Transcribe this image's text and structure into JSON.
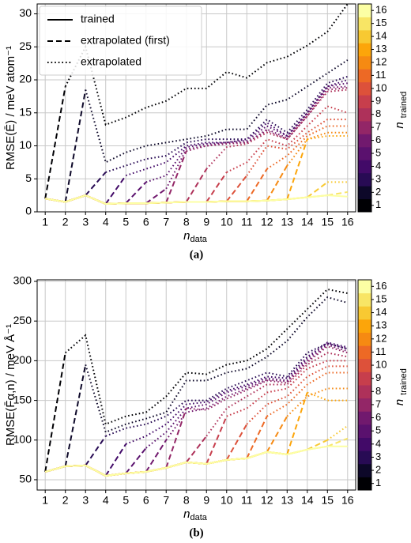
{
  "chart_data": [
    {
      "type": "line",
      "label": "(a)",
      "y_label": "RMSE(Ē) / meV atom⁻¹",
      "x_label": "n",
      "x_label_sub": "data",
      "x": [
        1,
        2,
        3,
        4,
        5,
        6,
        7,
        8,
        9,
        10,
        11,
        12,
        13,
        14,
        15,
        16
      ],
      "xlim": [
        0.6,
        16.4
      ],
      "xticks": [
        1,
        2,
        3,
        4,
        5,
        6,
        7,
        8,
        9,
        10,
        11,
        12,
        13,
        14,
        15,
        16
      ],
      "ylim": [
        0,
        31.5
      ],
      "yticks": [
        0,
        5,
        10,
        15,
        20,
        25,
        30
      ],
      "grid": true,
      "legend": {
        "position": "upper left",
        "entries": [
          {
            "label": "trained",
            "dash": "solid"
          },
          {
            "label": "extrapolated (first)",
            "dash": "dashed"
          },
          {
            "label": "extrapolated",
            "dash": "dotted"
          }
        ]
      },
      "colorbar": {
        "label": "n",
        "label_sub": "trained",
        "lim": [
          0.5,
          16.5
        ],
        "ticks": [
          1,
          2,
          3,
          4,
          5,
          6,
          7,
          8,
          9,
          10,
          11,
          12,
          13,
          14,
          15,
          16
        ]
      },
      "series": [
        {
          "n_trained": 1,
          "color": "#000004",
          "values": [
            2.0,
            19,
            25,
            13.2,
            14.3,
            15.8,
            16.8,
            18.7,
            18.7,
            21.2,
            20.3,
            22.6,
            23.5,
            25.2,
            27.3,
            31.5
          ]
        },
        {
          "n_trained": 2,
          "color": "#0d0829",
          "values": [
            2.0,
            1.5,
            18.5,
            7.5,
            9,
            10,
            10.5,
            11,
            11.5,
            12.5,
            12.5,
            16.2,
            17,
            19,
            21,
            23
          ]
        },
        {
          "n_trained": 3,
          "color": "#280b54",
          "values": [
            2.0,
            1.5,
            2.5,
            6,
            7,
            8,
            8.5,
            10.5,
            11,
            11,
            11,
            14,
            12,
            15.5,
            19.5,
            20.5
          ]
        },
        {
          "n_trained": 4,
          "color": "#420a68",
          "values": [
            2.0,
            1.5,
            2.5,
            1.2,
            5.5,
            6.5,
            7.5,
            10,
            10.5,
            10.5,
            11,
            13.5,
            11.5,
            15,
            19,
            20
          ]
        },
        {
          "n_trained": 5,
          "color": "#5a116e",
          "values": [
            2.0,
            1.5,
            2.5,
            1.2,
            1.3,
            4.5,
            5.5,
            9.8,
            10.3,
            10.5,
            10.8,
            13,
            11.5,
            15,
            19,
            19.5
          ]
        },
        {
          "n_trained": 6,
          "color": "#71196e",
          "values": [
            2.0,
            1.5,
            2.5,
            1.2,
            1.3,
            1.3,
            3.5,
            9.5,
            10,
            10.5,
            10.5,
            12.5,
            11.2,
            14.8,
            18.8,
            19
          ]
        },
        {
          "n_trained": 7,
          "color": "#932667",
          "values": [
            2.0,
            1.5,
            2.5,
            1.2,
            1.3,
            1.3,
            1.4,
            9.2,
            10,
            10.3,
            10.5,
            12.3,
            11,
            14.5,
            18.5,
            18.8
          ]
        },
        {
          "n_trained": 8,
          "color": "#ae315a",
          "values": [
            2.0,
            1.5,
            2.5,
            1.2,
            1.3,
            1.3,
            1.4,
            1.5,
            6.5,
            9.8,
            10.3,
            12,
            11,
            14.5,
            18.2,
            18.5
          ]
        },
        {
          "n_trained": 9,
          "color": "#c73e4c",
          "values": [
            2.0,
            1.5,
            2.5,
            1.2,
            1.3,
            1.3,
            1.4,
            1.5,
            1.5,
            6,
            7.5,
            11,
            10,
            13,
            16,
            15
          ]
        },
        {
          "n_trained": 10,
          "color": "#dd513a",
          "values": [
            2.0,
            1.5,
            2.5,
            1.2,
            1.3,
            1.3,
            1.4,
            1.5,
            1.5,
            1.6,
            5.5,
            10,
            9.5,
            12,
            14,
            14
          ]
        },
        {
          "n_trained": 11,
          "color": "#ed6925",
          "values": [
            2.0,
            1.5,
            2.5,
            1.2,
            1.3,
            1.3,
            1.4,
            1.5,
            1.5,
            1.6,
            1.6,
            6.5,
            8.5,
            11.5,
            13,
            13
          ]
        },
        {
          "n_trained": 12,
          "color": "#f68a12",
          "values": [
            2.0,
            1.5,
            2.5,
            1.2,
            1.3,
            1.3,
            1.4,
            1.5,
            1.5,
            1.6,
            1.6,
            1.7,
            7,
            11,
            12,
            12
          ]
        },
        {
          "n_trained": 13,
          "color": "#fca50a",
          "values": [
            2.0,
            1.5,
            2.5,
            1.2,
            1.3,
            1.3,
            1.4,
            1.5,
            1.5,
            1.6,
            1.6,
            1.7,
            1.9,
            11,
            11.5,
            11.5
          ]
        },
        {
          "n_trained": 14,
          "color": "#f8c932",
          "values": [
            2.0,
            1.5,
            2.5,
            1.2,
            1.3,
            1.3,
            1.4,
            1.5,
            1.5,
            1.6,
            1.6,
            1.7,
            1.9,
            2.2,
            4.5,
            4.5
          ]
        },
        {
          "n_trained": 15,
          "color": "#f8e565",
          "values": [
            2.0,
            1.5,
            2.5,
            1.2,
            1.3,
            1.3,
            1.4,
            1.5,
            1.5,
            1.6,
            1.6,
            1.7,
            1.9,
            2.2,
            2.5,
            3
          ]
        },
        {
          "n_trained": 16,
          "color": "#fcffa4",
          "values": [
            2.0,
            1.5,
            2.5,
            1.2,
            1.3,
            1.3,
            1.4,
            1.5,
            1.5,
            1.6,
            1.6,
            1.7,
            1.9,
            2.2,
            2.5,
            2.3
          ]
        }
      ]
    },
    {
      "type": "line",
      "label": "(b)",
      "y_label": "RMSE(F̄α,n) / meV Å⁻¹",
      "x_label": "n",
      "x_label_sub": "data",
      "x": [
        1,
        2,
        3,
        4,
        5,
        6,
        7,
        8,
        9,
        10,
        11,
        12,
        13,
        14,
        15,
        16
      ],
      "xlim": [
        0.6,
        16.4
      ],
      "xticks": [
        1,
        2,
        3,
        4,
        5,
        6,
        7,
        8,
        9,
        10,
        11,
        12,
        13,
        14,
        15,
        16
      ],
      "ylim": [
        37,
        302
      ],
      "yticks": [
        50,
        100,
        150,
        200,
        250,
        300
      ],
      "grid": true,
      "colorbar": {
        "label": "n",
        "label_sub": "trained",
        "lim": [
          0.5,
          16.5
        ],
        "ticks": [
          1,
          2,
          3,
          4,
          5,
          6,
          7,
          8,
          9,
          10,
          11,
          12,
          13,
          14,
          15,
          16
        ]
      },
      "series": [
        {
          "n_trained": 1,
          "color": "#000004",
          "values": [
            60,
            210,
            232,
            120,
            130,
            135,
            155,
            185,
            183,
            195,
            200,
            215,
            240,
            265,
            290,
            285
          ]
        },
        {
          "n_trained": 2,
          "color": "#0d0829",
          "values": [
            60,
            67,
            195,
            110,
            120,
            127,
            135,
            175,
            175,
            185,
            190,
            205,
            225,
            255,
            280,
            273
          ]
        },
        {
          "n_trained": 3,
          "color": "#280b54",
          "values": [
            60,
            67,
            68,
            105,
            115,
            120,
            130,
            150,
            150,
            165,
            175,
            185,
            180,
            210,
            222,
            215
          ]
        },
        {
          "n_trained": 4,
          "color": "#420a68",
          "values": [
            60,
            67,
            68,
            55,
            95,
            105,
            120,
            145,
            148,
            162,
            170,
            180,
            178,
            205,
            223,
            217
          ]
        },
        {
          "n_trained": 5,
          "color": "#5a116e",
          "values": [
            60,
            67,
            68,
            55,
            58,
            90,
            110,
            140,
            145,
            160,
            168,
            178,
            175,
            203,
            222,
            215
          ]
        },
        {
          "n_trained": 6,
          "color": "#71196e",
          "values": [
            60,
            67,
            68,
            55,
            58,
            60,
            100,
            135,
            140,
            155,
            165,
            176,
            174,
            200,
            220,
            212
          ]
        },
        {
          "n_trained": 7,
          "color": "#932667",
          "values": [
            60,
            67,
            68,
            55,
            58,
            60,
            65,
            140,
            138,
            152,
            163,
            175,
            172,
            198,
            218,
            210
          ]
        },
        {
          "n_trained": 8,
          "color": "#ae315a",
          "values": [
            60,
            67,
            68,
            55,
            58,
            60,
            65,
            72,
            105,
            140,
            155,
            170,
            170,
            195,
            210,
            205
          ]
        },
        {
          "n_trained": 9,
          "color": "#c73e4c",
          "values": [
            60,
            67,
            68,
            55,
            58,
            60,
            65,
            72,
            70,
            130,
            140,
            160,
            165,
            190,
            200,
            200
          ]
        },
        {
          "n_trained": 10,
          "color": "#dd513a",
          "values": [
            60,
            67,
            68,
            55,
            58,
            60,
            65,
            72,
            70,
            75,
            120,
            145,
            155,
            180,
            193,
            193
          ]
        },
        {
          "n_trained": 11,
          "color": "#ed6925",
          "values": [
            60,
            67,
            68,
            55,
            58,
            60,
            65,
            72,
            70,
            75,
            77,
            130,
            145,
            170,
            185,
            185
          ]
        },
        {
          "n_trained": 12,
          "color": "#f68a12",
          "values": [
            60,
            67,
            68,
            55,
            58,
            60,
            65,
            72,
            70,
            75,
            77,
            85,
            130,
            155,
            165,
            165
          ]
        },
        {
          "n_trained": 13,
          "color": "#fca50a",
          "values": [
            60,
            67,
            68,
            55,
            58,
            60,
            65,
            72,
            70,
            75,
            77,
            85,
            82,
            160,
            150,
            150
          ]
        },
        {
          "n_trained": 14,
          "color": "#f8c932",
          "values": [
            60,
            67,
            68,
            55,
            58,
            60,
            65,
            72,
            70,
            75,
            77,
            85,
            82,
            88,
            100,
            118
          ]
        },
        {
          "n_trained": 15,
          "color": "#f8e565",
          "values": [
            60,
            67,
            68,
            55,
            58,
            60,
            65,
            72,
            70,
            75,
            77,
            85,
            82,
            88,
            92,
            102
          ]
        },
        {
          "n_trained": 16,
          "color": "#fcffa4",
          "values": [
            60,
            67,
            68,
            55,
            58,
            60,
            65,
            72,
            70,
            75,
            77,
            85,
            82,
            88,
            92,
            92
          ]
        }
      ]
    }
  ]
}
